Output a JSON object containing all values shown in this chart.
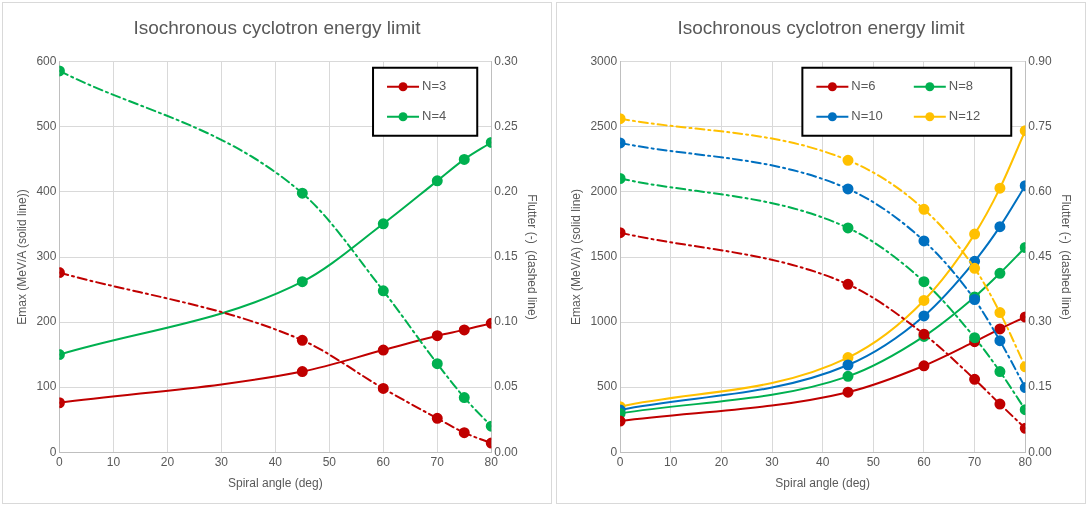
{
  "chart_data": [
    {
      "type": "line",
      "title": "Isochronous cyclotron energy limit",
      "xlabel": "Spiral angle (deg)",
      "ylabel": "Emax (MeV/A (solid line))",
      "y2label": "Flutter (-)  (dashed line)",
      "x": [
        0,
        45,
        60,
        70,
        75,
        80
      ],
      "series": [
        {
          "name": "N=3",
          "color": "#c00000",
          "values": [
            76,
            124,
            157,
            179,
            188,
            198
          ]
        },
        {
          "name": "N=4",
          "color": "#00b050",
          "values": [
            150,
            262,
            351,
            417,
            450,
            476
          ]
        },
        {
          "color": "#c00000",
          "axis": "y2",
          "line_style": "dashed",
          "values": [
            0.138,
            0.086,
            0.049,
            0.026,
            0.015,
            0.007
          ]
        },
        {
          "color": "#00b050",
          "axis": "y2",
          "line_style": "dashed",
          "values": [
            0.293,
            0.199,
            0.124,
            0.068,
            0.042,
            0.02
          ]
        }
      ],
      "xlim": [
        0,
        80
      ],
      "xticks": [
        0,
        10,
        20,
        30,
        40,
        50,
        60,
        70,
        80
      ],
      "ylim": [
        0,
        600
      ],
      "yticks": [
        0,
        100,
        200,
        300,
        400,
        500,
        600
      ],
      "y2lim": [
        0,
        0.3
      ],
      "y2ticks": [
        {
          "value": 0,
          "label": "0.00"
        },
        {
          "value": 0.05,
          "label": "0.05"
        },
        {
          "value": 0.1,
          "label": "0.10"
        },
        {
          "value": 0.15,
          "label": "0.15"
        },
        {
          "value": 0.2,
          "label": "0.20"
        },
        {
          "value": 0.25,
          "label": "0.25"
        },
        {
          "value": 0.3,
          "label": "0.30"
        }
      ],
      "grid": true,
      "legend": "top right",
      "marker": "circle",
      "line_style": "solid"
    },
    {
      "type": "line",
      "title": "Isochronous cyclotron energy limit",
      "xlabel": "Spiral angle (deg)",
      "ylabel": "Emax (MeV/A) (solid line)",
      "y2label": "Flutter (-)  (dashed line)",
      "x": [
        0,
        45,
        60,
        70,
        75,
        80
      ],
      "series": [
        {
          "name": "N=6",
          "color": "#c00000",
          "values": [
            239,
            461,
            664,
            849,
            947,
            1039
          ]
        },
        {
          "name": "N=8",
          "color": "#00b050",
          "values": [
            298,
            583,
            890,
            1193,
            1375,
            1573
          ]
        },
        {
          "name": "N=10",
          "color": "#0070c0",
          "values": [
            325,
            670,
            1047,
            1467,
            1733,
            2048
          ]
        },
        {
          "name": "N=12",
          "color": "#ffc000",
          "values": [
            350,
            727,
            1166,
            1676,
            2029,
            2471
          ]
        },
        {
          "color": "#c00000",
          "axis": "y2",
          "line_style": "dashed",
          "values": [
            0.506,
            0.387,
            0.272,
            0.168,
            0.111,
            0.055
          ]
        },
        {
          "color": "#00b050",
          "axis": "y2",
          "line_style": "dashed",
          "values": [
            0.631,
            0.517,
            0.393,
            0.264,
            0.186,
            0.098
          ]
        },
        {
          "color": "#0070c0",
          "axis": "y2",
          "line_style": "dashed",
          "values": [
            0.713,
            0.607,
            0.487,
            0.352,
            0.257,
            0.149
          ]
        },
        {
          "color": "#ffc000",
          "axis": "y2",
          "line_style": "dashed",
          "values": [
            0.769,
            0.673,
            0.56,
            0.424,
            0.322,
            0.197
          ]
        }
      ],
      "xlim": [
        0,
        80
      ],
      "xticks": [
        0,
        10,
        20,
        30,
        40,
        50,
        60,
        70,
        80
      ],
      "ylim": [
        0,
        3000
      ],
      "yticks": [
        0,
        500,
        1000,
        1500,
        2000,
        2500,
        3000
      ],
      "y2lim": [
        0,
        0.9
      ],
      "y2ticks": [
        {
          "value": 0,
          "label": "0.00"
        },
        {
          "value": 0.15,
          "label": "0.15"
        },
        {
          "value": 0.3,
          "label": "0.30"
        },
        {
          "value": 0.45,
          "label": "0.45"
        },
        {
          "value": 0.6,
          "label": "0.60"
        },
        {
          "value": 0.75,
          "label": "0.75"
        },
        {
          "value": 0.9,
          "label": "0.90"
        }
      ],
      "grid": true,
      "legend": "top right",
      "marker": "circle",
      "line_style": "solid"
    }
  ]
}
